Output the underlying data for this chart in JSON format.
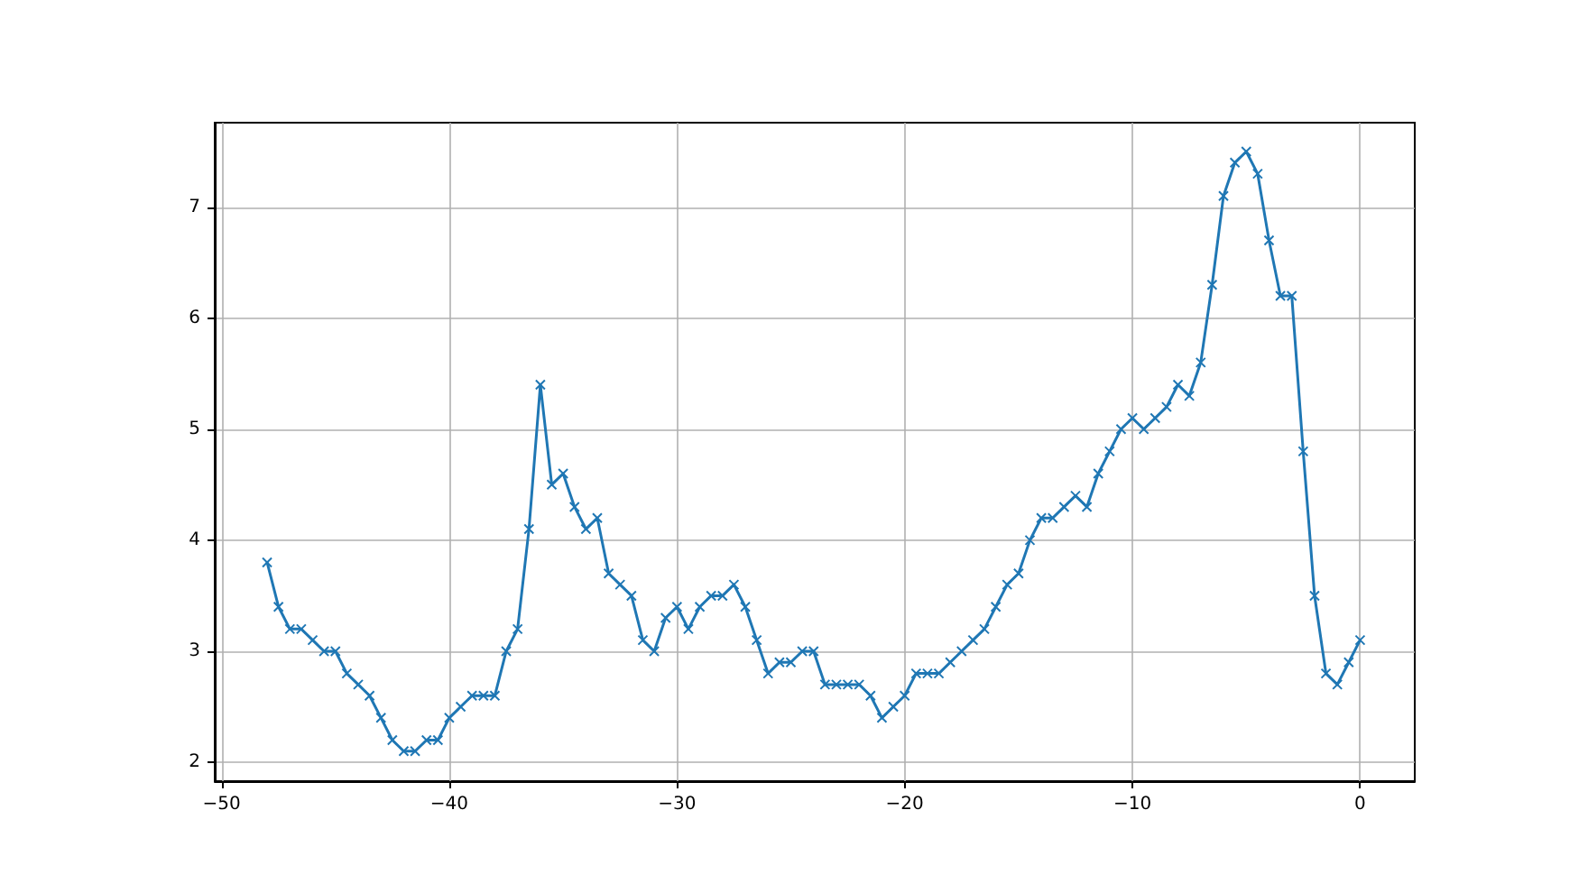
{
  "chart_data": {
    "type": "line",
    "x": [
      -48,
      -47.5,
      -47,
      -46.5,
      -46,
      -45.5,
      -45,
      -44.5,
      -44,
      -43.5,
      -43,
      -42.5,
      -42,
      -41.5,
      -41,
      -40.5,
      -40,
      -39.5,
      -39,
      -38.5,
      -38,
      -37.5,
      -37,
      -36.5,
      -36,
      -35.5,
      -35,
      -34.5,
      -34,
      -33.5,
      -33,
      -32.5,
      -32,
      -31.5,
      -31,
      -30.5,
      -30,
      -29.5,
      -29,
      -28.5,
      -28,
      -27.5,
      -27,
      -26.5,
      -26,
      -25.5,
      -25,
      -24.5,
      -24,
      -23.5,
      -23,
      -22.5,
      -22,
      -21.5,
      -21,
      -20.5,
      -20,
      -19.5,
      -19,
      -18.5,
      -18,
      -17.5,
      -17,
      -16.5,
      -16,
      -15.5,
      -15,
      -14.5,
      -14,
      -13.5,
      -13,
      -12.5,
      -12,
      -11.5,
      -11,
      -10.5,
      -10,
      -9.5,
      -9,
      -8.5,
      -8,
      -7.5,
      -7,
      -6.5,
      -6,
      -5.5,
      -5,
      -4.5,
      -4,
      -3.5,
      -3,
      -2.5,
      -2,
      -1.5,
      -1,
      -0.5,
      0
    ],
    "series": [
      {
        "color": "#1f77b4",
        "values": [
          3.8,
          3.4,
          3.2,
          3.2,
          3.1,
          3.0,
          3.0,
          2.8,
          2.7,
          2.6,
          2.4,
          2.2,
          2.1,
          2.1,
          2.2,
          2.2,
          2.4,
          2.5,
          2.6,
          2.6,
          2.6,
          3.0,
          3.2,
          4.1,
          5.4,
          4.5,
          4.6,
          4.3,
          4.1,
          4.2,
          3.7,
          3.6,
          3.5,
          3.1,
          3.0,
          3.3,
          3.4,
          3.2,
          3.4,
          3.5,
          3.5,
          3.6,
          3.4,
          3.1,
          2.8,
          2.9,
          2.9,
          3.0,
          3.0,
          2.7,
          2.7,
          2.7,
          2.7,
          2.6,
          2.4,
          2.5,
          2.6,
          2.8,
          2.8,
          2.8,
          2.9,
          3.0,
          3.1,
          3.2,
          3.4,
          3.6,
          3.7,
          4.0,
          4.2,
          4.2,
          4.3,
          4.4,
          4.3,
          4.6,
          4.8,
          5.0,
          5.1,
          5.0,
          5.1,
          5.2,
          5.4,
          5.3,
          5.6,
          6.3,
          7.1,
          7.4,
          7.5,
          7.3,
          6.7,
          6.2,
          6.2,
          4.8,
          3.5,
          2.8,
          2.7,
          2.9,
          3.1
        ]
      }
    ],
    "xlim": [
      -50.3,
      2.4
    ],
    "ylim": [
      1.83,
      7.76
    ],
    "xticks": [
      -50,
      -40,
      -30,
      -20,
      -10,
      0
    ],
    "yticks": [
      2,
      3,
      4,
      5,
      6,
      7
    ],
    "grid": true,
    "marker": "cross",
    "line_style": "solid"
  }
}
